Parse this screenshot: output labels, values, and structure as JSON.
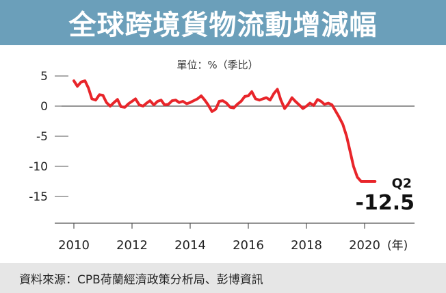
{
  "header": {
    "title": "全球跨境貨物流動增減幅"
  },
  "chart_data": {
    "type": "line",
    "title": "全球跨境貨物流動增減幅",
    "unit_label": "單位：%（季比）",
    "x_unit": "(年)",
    "ylim": [
      -17,
      6
    ],
    "xlim": [
      2009.6,
      2021.0
    ],
    "yticks": [
      5,
      0,
      -5,
      -10,
      -15
    ],
    "ytick_labels": [
      "5",
      "0",
      "-5",
      "-10",
      "-15"
    ],
    "xticks": [
      2010,
      2012,
      2014,
      2016,
      2018,
      2020
    ],
    "xtick_labels": [
      "2010",
      "2012",
      "2014",
      "2016",
      "2018",
      "2020"
    ],
    "zero_line": true,
    "series": [
      {
        "color": "#e8252a",
        "x": [
          2010.0,
          2010.12,
          2010.25,
          2010.38,
          2010.5,
          2010.62,
          2010.75,
          2010.88,
          2011.0,
          2011.12,
          2011.25,
          2011.38,
          2011.5,
          2011.62,
          2011.75,
          2011.88,
          2012.0,
          2012.12,
          2012.25,
          2012.38,
          2012.5,
          2012.62,
          2012.75,
          2012.88,
          2013.0,
          2013.12,
          2013.25,
          2013.38,
          2013.5,
          2013.62,
          2013.75,
          2013.88,
          2014.0,
          2014.12,
          2014.25,
          2014.38,
          2014.5,
          2014.62,
          2014.75,
          2014.88,
          2015.0,
          2015.12,
          2015.25,
          2015.38,
          2015.5,
          2015.62,
          2015.75,
          2015.88,
          2016.0,
          2016.12,
          2016.25,
          2016.38,
          2016.5,
          2016.62,
          2016.75,
          2016.88,
          2017.0,
          2017.12,
          2017.25,
          2017.38,
          2017.5,
          2017.62,
          2017.75,
          2017.88,
          2018.0,
          2018.12,
          2018.25,
          2018.38,
          2018.5,
          2018.62,
          2018.75,
          2018.88,
          2019.0,
          2019.12,
          2019.25,
          2019.38,
          2019.5,
          2019.62,
          2019.75,
          2019.88,
          2020.0,
          2020.12,
          2020.2,
          2020.28,
          2020.36,
          2020.45
        ],
        "values": [
          4.2,
          3.3,
          4.0,
          4.2,
          3.0,
          1.2,
          1.0,
          1.9,
          1.8,
          0.6,
          0.0,
          0.6,
          1.1,
          -0.1,
          -0.2,
          0.4,
          0.8,
          1.2,
          0.2,
          0.0,
          0.5,
          0.9,
          0.2,
          0.8,
          1.0,
          0.2,
          0.3,
          0.9,
          1.0,
          0.6,
          0.8,
          0.4,
          0.6,
          0.9,
          1.2,
          1.7,
          1.0,
          0.2,
          -0.9,
          -0.5,
          0.8,
          0.9,
          0.5,
          -0.2,
          -0.3,
          0.3,
          0.8,
          1.6,
          1.7,
          2.4,
          1.2,
          1.0,
          1.2,
          1.4,
          1.0,
          2.1,
          2.8,
          1.0,
          -0.4,
          0.4,
          1.4,
          0.8,
          0.2,
          -0.4,
          0.0,
          0.5,
          0.1,
          1.1,
          0.8,
          0.3,
          0.5,
          0.2,
          -0.8,
          -1.8,
          -3.0,
          -5.0,
          -7.5,
          -10.0,
          -11.8,
          -12.5,
          -12.5,
          -12.5,
          -12.5,
          -12.5,
          -12.5,
          -12.5
        ],
        "end_period": "Q2",
        "end_value_label": "-12.5"
      }
    ]
  },
  "footer": {
    "source": "資料來源：CPB荷蘭經濟政策分析局、彭博資訊"
  }
}
